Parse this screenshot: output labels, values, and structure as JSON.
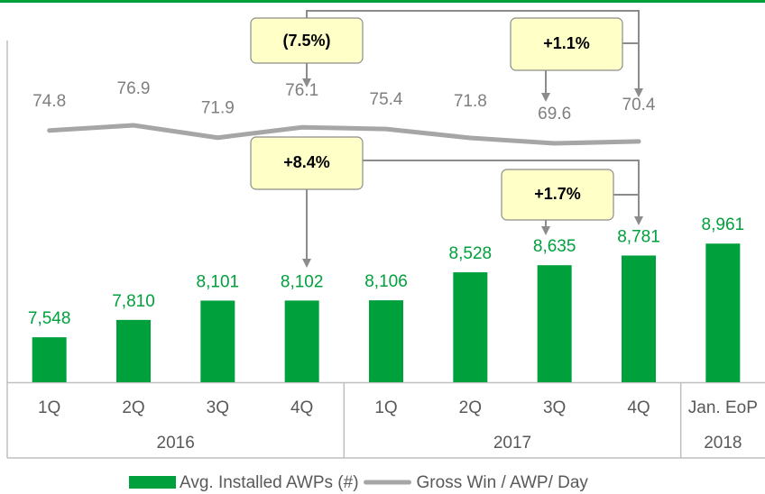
{
  "chart_data": {
    "type": "bar_line",
    "categories": [
      "1Q",
      "2Q",
      "3Q",
      "4Q",
      "1Q",
      "2Q",
      "3Q",
      "4Q",
      "Jan. EoP"
    ],
    "groups": [
      {
        "label": "2016",
        "span": 4
      },
      {
        "label": "2017",
        "span": 4
      },
      {
        "label": "2018",
        "span": 1
      }
    ],
    "series": [
      {
        "name": "Avg. Installed AWPs (#)",
        "color": "#00a03c",
        "kind": "bar",
        "values": [
          7548,
          7810,
          8101,
          8102,
          8106,
          8528,
          8635,
          8781,
          8961
        ],
        "value_labels": [
          "7,548",
          "7,810",
          "8,101",
          "8,102",
          "8,106",
          "8,528",
          "8,635",
          "8,781",
          "8,961"
        ]
      },
      {
        "name": "Gross Win / AWP/ Day",
        "color": "#a6a6a6",
        "kind": "line",
        "axis": "y2",
        "values": [
          74.8,
          76.9,
          71.9,
          76.1,
          75.4,
          71.8,
          69.6,
          70.4,
          null
        ]
      }
    ],
    "ylim": [
      6870,
      9100
    ],
    "y2lim": [
      -27,
      113
    ],
    "annotations": [
      "(7.5%)",
      "+1.1%",
      "+8.4%",
      "+1.7%"
    ]
  }
}
